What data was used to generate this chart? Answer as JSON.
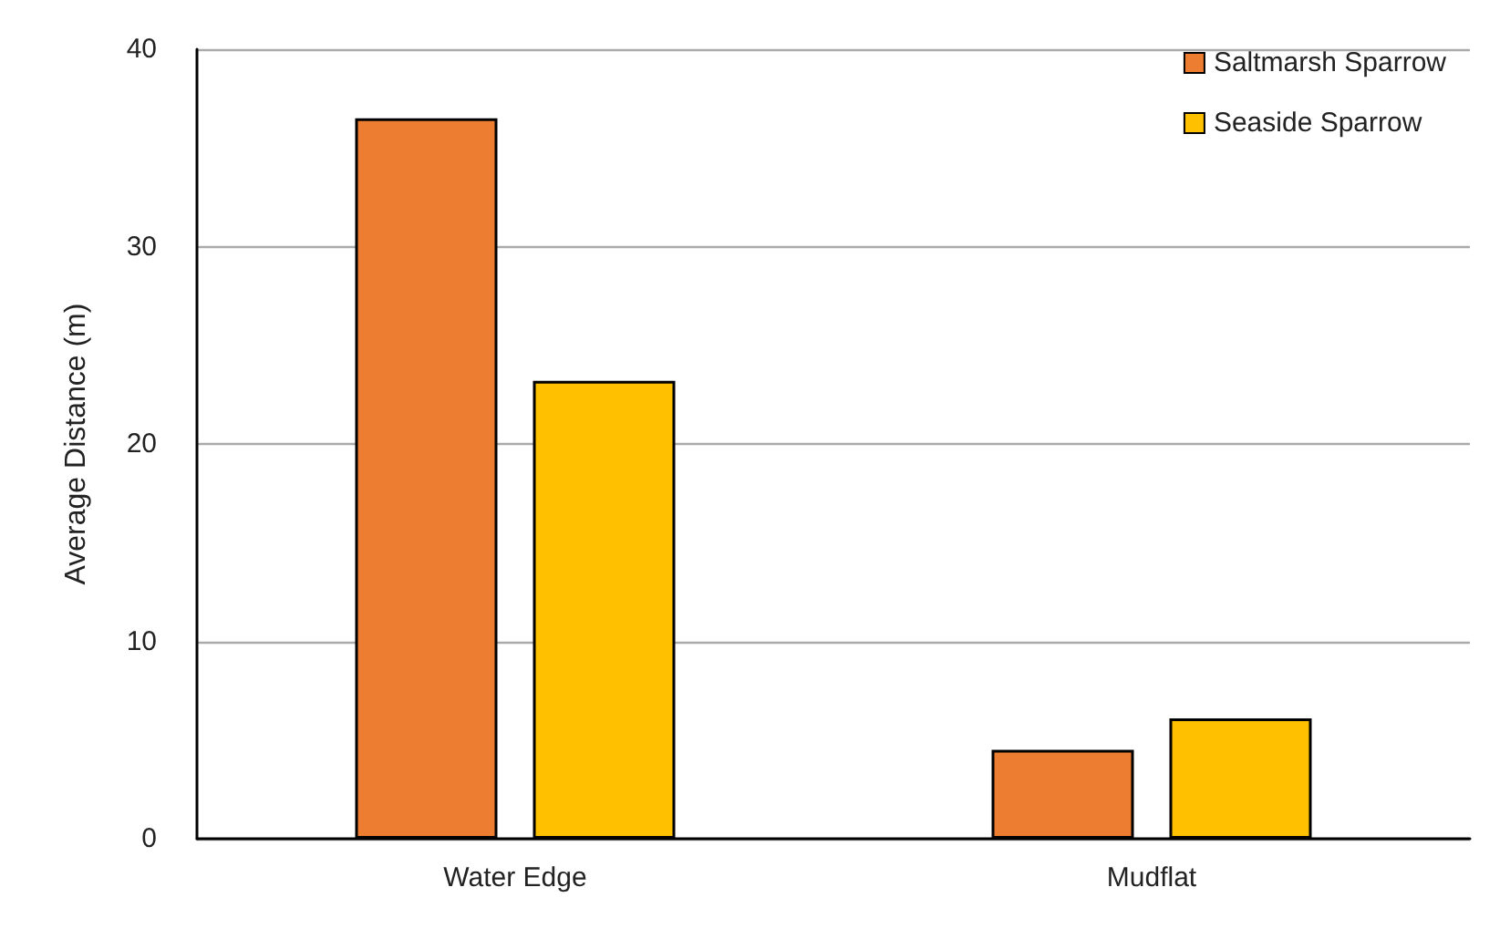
{
  "chart_data": {
    "type": "bar",
    "ylabel": "Average Distance (m)",
    "categories": [
      "Water Edge",
      "Mudflat"
    ],
    "series": [
      {
        "name": "Saltmarsh Sparrow",
        "color": "#ed7d31",
        "values": [
          36.5,
          4.5
        ]
      },
      {
        "name": "Seaside Sparrow",
        "color": "#ffc000",
        "values": [
          23.2,
          6.1
        ]
      }
    ],
    "ylim": [
      0,
      40
    ],
    "yticks": [
      0,
      10,
      20,
      30,
      40
    ],
    "grid": "y",
    "legend": "top right"
  }
}
